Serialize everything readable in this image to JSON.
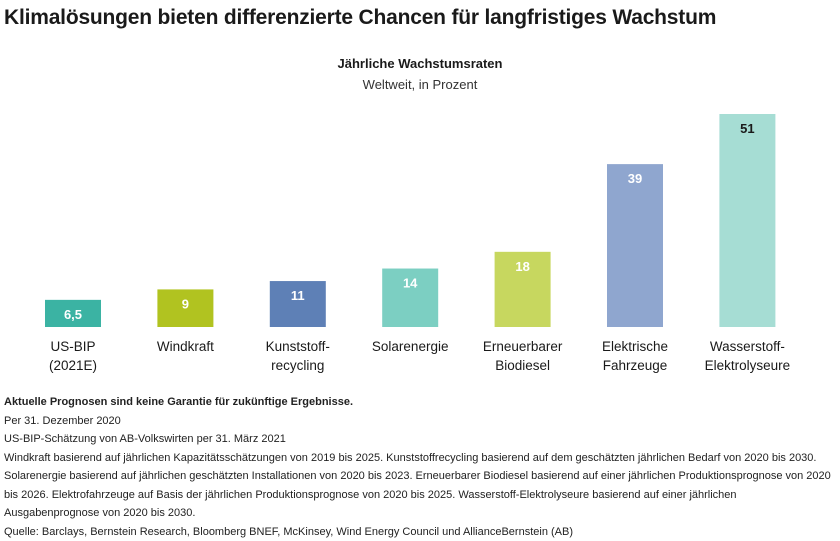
{
  "headline": "Klimalösungen bieten differenzierte Chancen für langfristiges Wachstum",
  "chart_data": {
    "type": "bar",
    "title": "Jährliche Wachstumsraten",
    "subtitle": "Weltweit, in Prozent",
    "categories": [
      [
        "US-BIP",
        "(2021E)"
      ],
      [
        "Windkraft"
      ],
      [
        "Kunststoff-",
        "recycling"
      ],
      [
        "Solarenergie"
      ],
      [
        "Erneuerbarer",
        "Biodiesel"
      ],
      [
        "Elektrische",
        "Fahrzeuge"
      ],
      [
        "Wasserstoff-",
        "Elektrolyseure"
      ]
    ],
    "values": [
      6.5,
      9,
      11,
      14,
      18,
      39,
      51
    ],
    "value_labels": [
      "6,5",
      "9",
      "11",
      "14",
      "18",
      "39",
      "51"
    ],
    "colors": [
      "#3bb3a3",
      "#b1c320",
      "#5e80b6",
      "#7ccfc2",
      "#c7d75f",
      "#8fa6cf",
      "#a6ddd4"
    ],
    "value_label_colors": [
      "#ffffff",
      "#ffffff",
      "#ffffff",
      "#ffffff",
      "#ffffff",
      "#ffffff",
      "#1a1a1a"
    ],
    "ylim": [
      0,
      51
    ],
    "grid": false,
    "xlabel": "",
    "ylabel": ""
  },
  "footer": {
    "disclaimer": "Aktuelle Prognosen sind keine Garantie für zukünftige Ergebnisse.",
    "date": "Per 31. Dezember 2020",
    "gdp_note": "US-BIP-Schätzung von AB-Volkswirten per 31. März 2021",
    "methodology": "Windkraft basierend auf jährlichen Kapazitätsschätzungen von 2019 bis 2025. Kunststoffrecycling basierend auf dem geschätzten jährlichen Bedarf von 2020 bis 2030. Solarenergie basierend auf jährlichen geschätzten Installationen von 2020 bis 2023. Erneuerbarer Biodiesel basierend auf einer jährlichen Produktionsprognose von 2020 bis 2026. Elektrofahrzeuge auf Basis der jährlichen Produktionsprognose von 2020 bis 2025. Wasserstoff-Elektrolyseure basierend auf einer jährlichen Ausgabenprognose von 2020 bis 2030.",
    "source": "Quelle: Barclays, Bernstein Research, Bloomberg BNEF, McKinsey, Wind Energy Council und AllianceBernstein (AB)"
  }
}
